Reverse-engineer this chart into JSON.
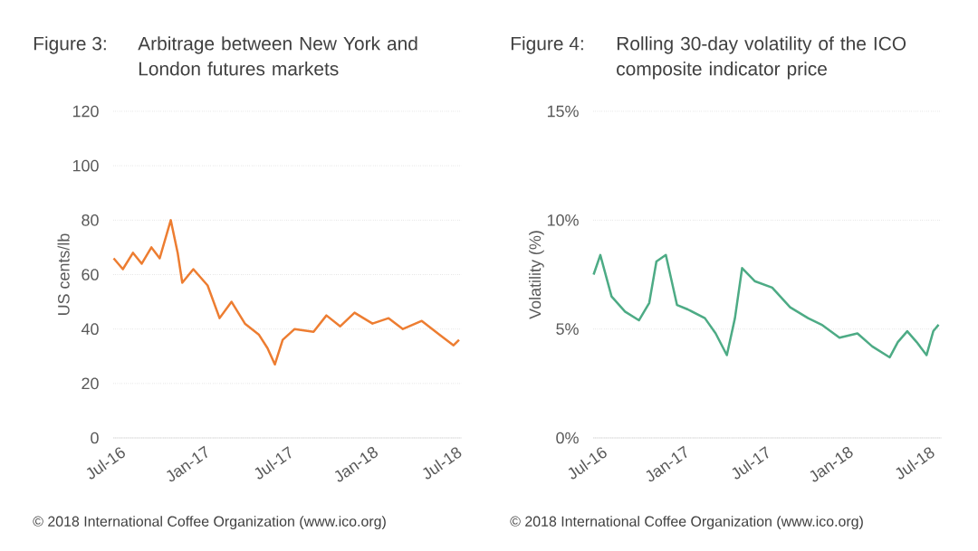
{
  "chart_data": [
    {
      "type": "line",
      "title": "Arbitrage between New York and London futures markets",
      "ylabel": "US cents/lb",
      "color": "#ed7d31",
      "grid": "y",
      "annotations": [
        "Figure 3:",
        "© 2018 International Coffee Organization (www.ico.org)"
      ],
      "x": [
        "2016-06-20",
        "2016-07-10",
        "2016-08-01",
        "2016-08-20",
        "2016-09-10",
        "2016-09-28",
        "2016-10-22",
        "2016-11-06",
        "2016-11-16",
        "2016-12-10",
        "2017-01-10",
        "2017-02-05",
        "2017-03-03",
        "2017-04-01",
        "2017-05-01",
        "2017-05-20",
        "2017-06-05",
        "2017-06-22",
        "2017-07-18",
        "2017-08-28",
        "2017-09-25",
        "2017-10-25",
        "2017-11-25",
        "2018-01-03",
        "2018-02-07",
        "2018-03-10",
        "2018-04-20",
        "2018-05-28",
        "2018-06-28",
        "2018-07-10"
      ],
      "values": [
        66,
        62,
        68,
        64,
        70,
        66,
        80,
        68,
        57,
        62,
        56,
        44,
        50,
        42,
        38,
        33,
        27,
        36,
        40,
        39,
        45,
        41,
        46,
        42,
        44,
        40,
        43,
        38,
        34,
        36
      ],
      "xlim": [
        "2016-06-19",
        "2018-07-16"
      ],
      "ylim": [
        0,
        120
      ],
      "xticks": [
        {
          "value": "2016-07-01",
          "label": "Jul-16"
        },
        {
          "value": "2017-01-01",
          "label": "Jan-17"
        },
        {
          "value": "2017-07-01",
          "label": "Jul-17"
        },
        {
          "value": "2018-01-01",
          "label": "Jan-18"
        },
        {
          "value": "2018-07-01",
          "label": "Jul-18"
        }
      ],
      "yticks": [
        0,
        20,
        40,
        60,
        80,
        100,
        120
      ]
    },
    {
      "type": "line",
      "title": "Rolling 30-day volatility of the ICO composite indicator price",
      "ylabel": "Volatility (%)",
      "color": "#4dab85",
      "grid": "y",
      "annotations": [
        "Figure 4:",
        "© 2018 International Coffee Organization (www.ico.org)"
      ],
      "x": [
        "2016-06-16",
        "2016-07-01",
        "2016-07-26",
        "2016-08-25",
        "2016-09-25",
        "2016-10-18",
        "2016-11-03",
        "2016-11-24",
        "2016-12-19",
        "2017-01-12",
        "2017-02-19",
        "2017-03-15",
        "2017-04-09",
        "2017-04-27",
        "2017-05-13",
        "2017-06-10",
        "2017-07-19",
        "2017-08-28",
        "2017-10-07",
        "2017-11-06",
        "2017-12-16",
        "2018-01-25",
        "2018-02-27",
        "2018-04-07",
        "2018-04-25",
        "2018-05-16",
        "2018-06-06",
        "2018-06-28",
        "2018-07-13",
        "2018-07-25"
      ],
      "values": [
        7.5,
        8.4,
        6.5,
        5.8,
        5.4,
        6.2,
        8.1,
        8.4,
        6.1,
        5.9,
        5.5,
        4.8,
        3.8,
        5.5,
        7.8,
        7.2,
        6.9,
        6.0,
        5.5,
        5.2,
        4.6,
        4.8,
        4.2,
        3.7,
        4.4,
        4.9,
        4.4,
        3.8,
        4.9,
        5.2
      ],
      "xlim": [
        "2016-06-15",
        "2018-08-01"
      ],
      "ylim": [
        0,
        15
      ],
      "xticks": [
        {
          "value": "2016-07-01",
          "label": "Jul-16"
        },
        {
          "value": "2017-01-01",
          "label": "Jan-17"
        },
        {
          "value": "2017-07-01",
          "label": "Jul-17"
        },
        {
          "value": "2018-01-01",
          "label": "Jan-18"
        },
        {
          "value": "2018-07-01",
          "label": "Jul-18"
        }
      ],
      "yticks": [
        {
          "value": 0,
          "label": "0%"
        },
        {
          "value": 5,
          "label": "5%"
        },
        {
          "value": 10,
          "label": "10%"
        },
        {
          "value": 15,
          "label": "15%"
        }
      ]
    }
  ]
}
